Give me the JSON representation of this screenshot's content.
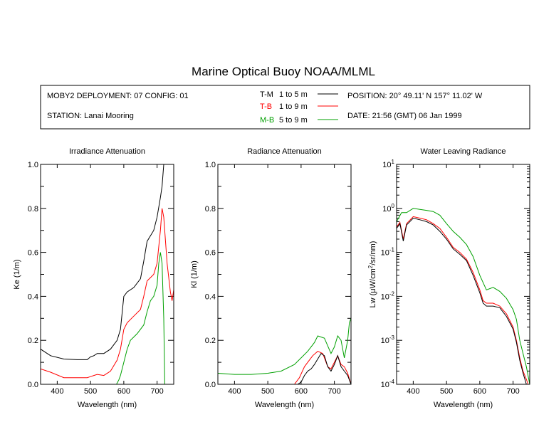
{
  "title": "Marine Optical Buoy NOAA/MLML",
  "info": {
    "deployment": "MOBY2 DEPLOYMENT: 07 CONFIG: 01",
    "station": "STATION: Lanai Mooring",
    "position": "POSITION: 20° 49.11' N   157° 11.02' W",
    "date": "DATE: 21:56 (GMT) 06 Jan 1999"
  },
  "legend": [
    {
      "code": "T-M",
      "range": "1 to 5  m",
      "color": "#000000"
    },
    {
      "code": "T-B",
      "range": "1 to 9  m",
      "color": "#ff0000"
    },
    {
      "code": "M-B",
      "range": "5 to 9  m",
      "color": "#00a000"
    }
  ],
  "chart_data": [
    {
      "type": "line",
      "title": "Irradiance Attenuation",
      "xlabel": "Wavelength (nm)",
      "ylabel": "Ke  (1/m)",
      "xlim": [
        350,
        750
      ],
      "ylim": [
        0,
        1.0
      ],
      "xticks": [
        400,
        500,
        600,
        700
      ],
      "yticks": [
        0.0,
        0.2,
        0.4,
        0.6,
        0.8,
        1.0
      ],
      "ytick_labels": [
        "0.0",
        "0.2",
        "0.4",
        "0.6",
        "0.8",
        "1.0"
      ],
      "series": [
        {
          "name": "T-M",
          "color": "#000000",
          "x": [
            350,
            380,
            420,
            460,
            490,
            500,
            510,
            520,
            540,
            560,
            580,
            590,
            600,
            610,
            630,
            650,
            660,
            670,
            690,
            700,
            710,
            715,
            720
          ],
          "y": [
            0.16,
            0.13,
            0.115,
            0.112,
            0.112,
            0.125,
            0.13,
            0.14,
            0.14,
            0.16,
            0.2,
            0.25,
            0.4,
            0.42,
            0.44,
            0.48,
            0.56,
            0.65,
            0.7,
            0.76,
            0.85,
            0.9,
            1.0
          ]
        },
        {
          "name": "T-B",
          "color": "#ff0000",
          "x": [
            350,
            380,
            420,
            460,
            490,
            500,
            510,
            520,
            540,
            560,
            580,
            590,
            600,
            610,
            630,
            650,
            660,
            670,
            690,
            700,
            710,
            715,
            720,
            730,
            740,
            745,
            750
          ],
          "y": [
            0.07,
            0.055,
            0.03,
            0.03,
            0.03,
            0.035,
            0.04,
            0.045,
            0.04,
            0.06,
            0.11,
            0.16,
            0.25,
            0.28,
            0.31,
            0.34,
            0.4,
            0.47,
            0.5,
            0.55,
            0.7,
            0.8,
            0.76,
            0.55,
            0.42,
            0.38,
            0.43
          ]
        },
        {
          "name": "M-B",
          "color": "#00a000",
          "x": [
            578,
            585,
            590,
            600,
            610,
            620,
            640,
            660,
            670,
            680,
            690,
            700,
            705,
            710,
            715,
            720,
            723
          ],
          "y": [
            0.0,
            0.02,
            0.04,
            0.1,
            0.16,
            0.2,
            0.23,
            0.27,
            0.33,
            0.38,
            0.4,
            0.45,
            0.55,
            0.6,
            0.55,
            0.3,
            0.0
          ]
        }
      ]
    },
    {
      "type": "line",
      "title": "Radiance Attenuation",
      "xlabel": "Wavelength (nm)",
      "ylabel": "Kl  (1/m)",
      "xlim": [
        350,
        750
      ],
      "ylim": [
        0,
        1.0
      ],
      "xticks": [
        400,
        500,
        600,
        700
      ],
      "yticks": [
        0.0,
        0.2,
        0.4,
        0.6,
        0.8,
        1.0
      ],
      "ytick_labels": [
        "0.0",
        "0.2",
        "0.4",
        "0.6",
        "0.8",
        "1.0"
      ],
      "series": [
        {
          "name": "M-B",
          "color": "#00a000",
          "x": [
            350,
            400,
            450,
            500,
            540,
            580,
            600,
            620,
            640,
            650,
            670,
            690,
            700,
            710,
            720,
            730,
            740,
            745,
            750
          ],
          "y": [
            0.05,
            0.045,
            0.045,
            0.05,
            0.06,
            0.09,
            0.12,
            0.15,
            0.19,
            0.22,
            0.21,
            0.14,
            0.17,
            0.22,
            0.2,
            0.12,
            0.2,
            0.28,
            0.3
          ]
        },
        {
          "name": "T-B",
          "color": "#ff0000",
          "x": [
            580,
            595,
            610,
            620,
            635,
            650,
            665,
            680,
            690,
            700,
            710,
            720,
            730,
            740,
            750
          ],
          "y": [
            0.0,
            0.03,
            0.08,
            0.1,
            0.13,
            0.15,
            0.14,
            0.08,
            0.07,
            0.1,
            0.13,
            0.09,
            0.08,
            0.05,
            0.0
          ]
        },
        {
          "name": "T-M",
          "color": "#000000",
          "x": [
            590,
            600,
            610,
            620,
            630,
            640,
            660,
            670,
            680,
            690,
            700,
            710,
            720,
            730,
            740,
            750
          ],
          "y": [
            0.0,
            0.01,
            0.04,
            0.06,
            0.07,
            0.09,
            0.14,
            0.13,
            0.08,
            0.06,
            0.09,
            0.13,
            0.08,
            0.06,
            0.04,
            0.0
          ]
        }
      ]
    },
    {
      "type": "line",
      "title": "Water Leaving Radiance",
      "xlabel": "Wavelength (nm)",
      "ylabel": "Lw  (μW/cm²/sr/nm)",
      "yscale": "log",
      "xlim": [
        350,
        750
      ],
      "ylim": [
        0.0001,
        10
      ],
      "xticks": [
        400,
        500,
        600,
        700
      ],
      "yticks": [
        0.0001,
        0.001,
        0.01,
        0.1,
        1,
        10
      ],
      "ytick_labels": [
        {
          "base": "10",
          "exp": "-4"
        },
        {
          "base": "10",
          "exp": "-3"
        },
        {
          "base": "10",
          "exp": "-2"
        },
        {
          "base": "10",
          "exp": "-1"
        },
        {
          "base": "10",
          "exp": "0"
        },
        {
          "base": "10",
          "exp": "1"
        }
      ],
      "series": [
        {
          "name": "M-B",
          "color": "#00a000",
          "x": [
            350,
            365,
            380,
            400,
            420,
            440,
            460,
            480,
            500,
            520,
            540,
            560,
            580,
            600,
            620,
            640,
            660,
            680,
            700,
            710,
            720,
            730,
            740,
            750
          ],
          "y": [
            0.5,
            0.8,
            0.8,
            1.0,
            0.95,
            0.9,
            0.85,
            0.7,
            0.45,
            0.3,
            0.22,
            0.15,
            0.08,
            0.03,
            0.014,
            0.016,
            0.013,
            0.009,
            0.005,
            0.003,
            0.001,
            0.0005,
            0.00025,
            0.0001
          ]
        },
        {
          "name": "T-B",
          "color": "#ff0000",
          "x": [
            350,
            360,
            370,
            380,
            400,
            420,
            440,
            460,
            480,
            500,
            520,
            540,
            560,
            580,
            600,
            610,
            620,
            640,
            660,
            680,
            700,
            710,
            720,
            730,
            740,
            745
          ],
          "y": [
            0.38,
            0.48,
            0.2,
            0.45,
            0.65,
            0.6,
            0.55,
            0.45,
            0.35,
            0.22,
            0.13,
            0.1,
            0.07,
            0.035,
            0.014,
            0.008,
            0.007,
            0.007,
            0.006,
            0.004,
            0.002,
            0.001,
            0.0004,
            0.0002,
            0.00013,
            0.0001
          ]
        },
        {
          "name": "T-M",
          "color": "#000000",
          "x": [
            350,
            360,
            370,
            380,
            400,
            420,
            440,
            460,
            480,
            500,
            520,
            540,
            560,
            580,
            600,
            610,
            620,
            640,
            660,
            680,
            700,
            710,
            720,
            730,
            740
          ],
          "y": [
            0.35,
            0.45,
            0.18,
            0.42,
            0.6,
            0.55,
            0.5,
            0.42,
            0.3,
            0.2,
            0.12,
            0.09,
            0.065,
            0.03,
            0.012,
            0.007,
            0.006,
            0.006,
            0.0055,
            0.0035,
            0.0018,
            0.0009,
            0.00035,
            0.00018,
            0.0001
          ]
        }
      ]
    }
  ]
}
